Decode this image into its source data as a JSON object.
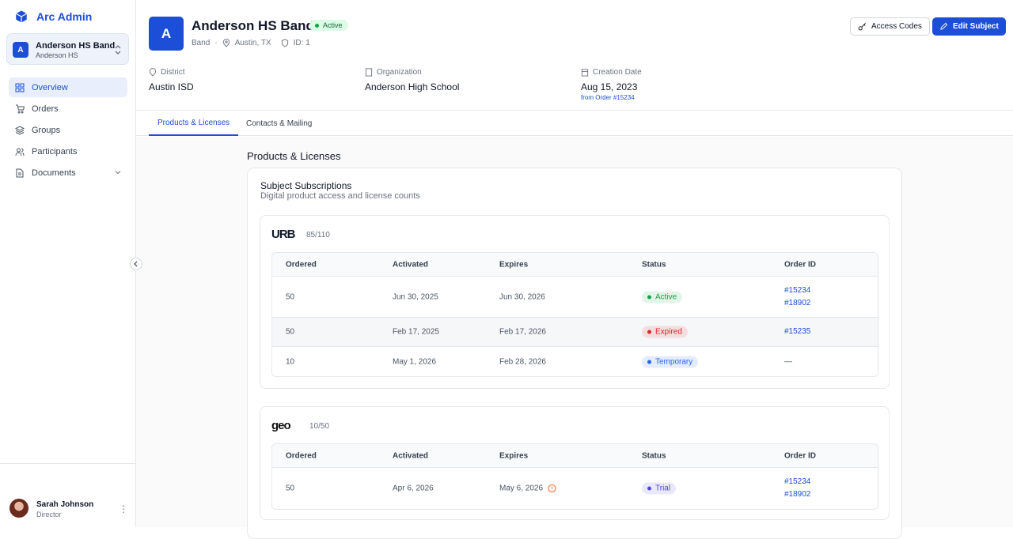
{
  "sidebar": {
    "brand": "Arc Admin",
    "account": {
      "avatar": "A",
      "name": "Anderson HS Band",
      "subtitle": "Anderson HS"
    },
    "nav": [
      "Overview",
      "Orders",
      "Groups",
      "Participants",
      "Documents"
    ],
    "user": {
      "name": "Sarah Johnson",
      "role": "Director"
    }
  },
  "header": {
    "avatar": "A",
    "title": "Anderson HS Band",
    "status": "Active",
    "type": "Band",
    "location": "Austin, TX",
    "id": "ID: 1",
    "buttons": [
      "Access Codes",
      "Edit Subject"
    ]
  },
  "details": [
    {
      "label": "District",
      "value": "Austin ISD"
    },
    {
      "label": "Organization",
      "value": "Anderson High School"
    },
    {
      "label": "Creation Date",
      "value": "Aug 15, 2023",
      "note": "from Order #15234"
    }
  ],
  "tabs": [
    "Products & Licenses",
    "Contacts & Mailing"
  ],
  "section_title": "Products & Licenses",
  "card": {
    "title": "Subject Subscriptions",
    "subtitle": "Digital product access and license counts"
  },
  "products": [
    {
      "logo": "URB",
      "count": "85/110",
      "columns": [
        "Ordered",
        "Activated",
        "Expires",
        "Status",
        "Order ID"
      ],
      "rows": [
        {
          "ordered": "50",
          "activated": "Jun 30, 2025",
          "expires": "Jun 30, 2026",
          "status": "Active",
          "status_color": "#16a34a",
          "orders": [
            "#15234",
            "#18902"
          ]
        },
        {
          "ordered": "50",
          "activated": "Feb 17, 2025",
          "expires": "Feb 17, 2026",
          "status": "Expired",
          "status_color": "#dc2626",
          "orders": [
            "#15235"
          ]
        },
        {
          "ordered": "10",
          "activated": "May 1, 2026",
          "expires": "Feb 28, 2026",
          "status": "Temporary",
          "status_color": "#2563eb",
          "orders": [
            "—"
          ]
        }
      ]
    },
    {
      "logo": "geo",
      "count": "10/50",
      "columns": [
        "Ordered",
        "Activated",
        "Expires",
        "Status",
        "Order ID"
      ],
      "rows": [
        {
          "ordered": "50",
          "activated": "Apr 6, 2026",
          "expires": "May 6, 2026",
          "status": "Trial",
          "status_color": "#4f46e5",
          "orders": [
            "#15234",
            "#18902"
          ]
        }
      ]
    }
  ]
}
